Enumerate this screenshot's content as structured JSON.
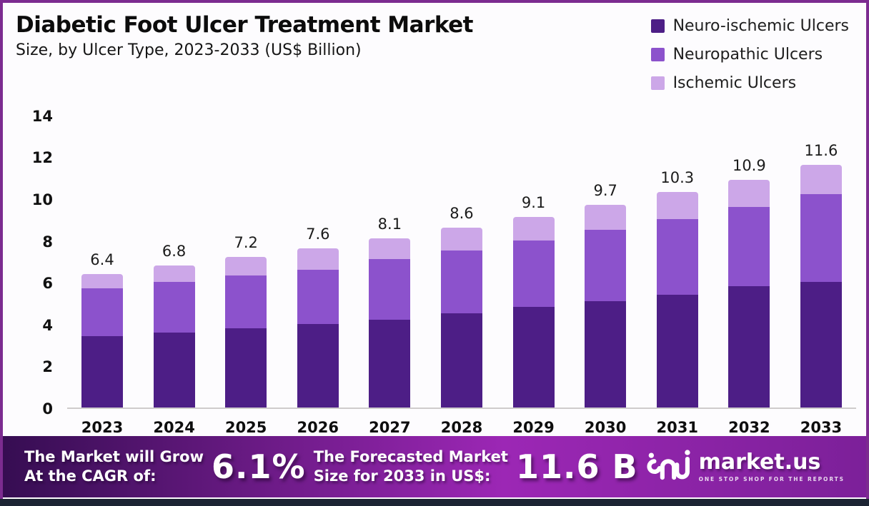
{
  "header": {
    "title": "Diabetic Foot Ulcer Treatment Market",
    "subtitle": "Size, by Ulcer Type, 2023-2033 (US$ Billion)"
  },
  "legend": [
    {
      "label": "Neuro-ischemic Ulcers",
      "color": "#4D1E86"
    },
    {
      "label": "Neuropathic Ulcers",
      "color": "#8C52CC"
    },
    {
      "label": "Ischemic Ulcers",
      "color": "#CCA7E8"
    }
  ],
  "chart_data": {
    "type": "bar",
    "stacked": true,
    "title": "Diabetic Foot Ulcer Treatment Market Size, by Ulcer Type, 2023-2033 (US$ Billion)",
    "categories": [
      "2023",
      "2024",
      "2025",
      "2026",
      "2027",
      "2028",
      "2029",
      "2030",
      "2031",
      "2032",
      "2033"
    ],
    "series": [
      {
        "name": "Neuro-ischemic Ulcers",
        "color": "#4D1E86",
        "values": [
          3.4,
          3.6,
          3.8,
          4.0,
          4.2,
          4.5,
          4.8,
          5.1,
          5.4,
          5.8,
          6.0
        ]
      },
      {
        "name": "Neuropathic Ulcers",
        "color": "#8C52CC",
        "values": [
          2.3,
          2.4,
          2.5,
          2.6,
          2.9,
          3.0,
          3.2,
          3.4,
          3.6,
          3.8,
          4.2
        ]
      },
      {
        "name": "Ischemic Ulcers",
        "color": "#CCA7E8",
        "values": [
          0.7,
          0.8,
          0.9,
          1.0,
          1.0,
          1.1,
          1.1,
          1.2,
          1.3,
          1.3,
          1.4
        ]
      }
    ],
    "totals": [
      6.4,
      6.8,
      7.2,
      7.6,
      8.1,
      8.6,
      9.1,
      9.7,
      10.3,
      10.9,
      11.6
    ],
    "total_labels": [
      "6.4",
      "6.8",
      "7.2",
      "7.6",
      "8.1",
      "8.6",
      "9.1",
      "9.7",
      "10.3",
      "10.9",
      "11.6"
    ],
    "xlabel": "",
    "ylabel": "",
    "ylim": [
      0,
      14
    ],
    "yticks": [
      0,
      2,
      4,
      6,
      8,
      10,
      12,
      14
    ],
    "grid": false,
    "legend_position": "top-right"
  },
  "footer": {
    "cagr_label_line1": "The Market will Grow",
    "cagr_label_line2": "At the CAGR of:",
    "cagr_value": "6.1%",
    "forecast_label_line1": "The Forecasted Market",
    "forecast_label_line2": "Size for 2033 in US$:",
    "forecast_value": "11.6 B",
    "brand_name": "market.us",
    "brand_tagline": "ONE STOP SHOP FOR THE REPORTS",
    "gradient_left": "#360D52",
    "gradient_mid": "#9C27B5",
    "gradient_right": "#7C2099"
  },
  "colors": {
    "frame_border": "#7C2B90",
    "bottom_strip": "#1C2433",
    "axis_line": "#CFCCCC",
    "background": "#FDFCFE",
    "text": "#111111"
  }
}
